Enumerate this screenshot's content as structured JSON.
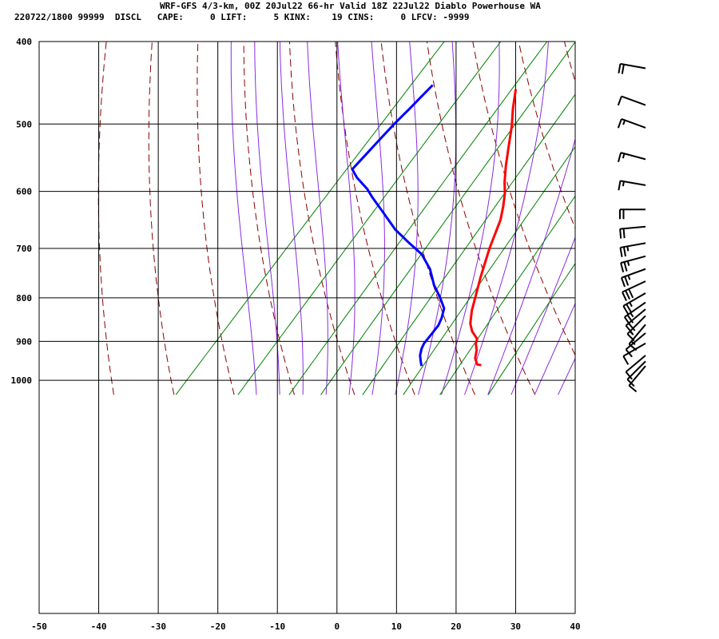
{
  "header": {
    "line1": "WRF-GFS 4/3-km, 00Z 20Jul22 66-hr Valid 18Z 22Jul22 Diablo Powerhouse WA",
    "line2": "220722/1800 99999  DISCL   CAPE:     0 LIFT:     5 KINX:    19 CINS:     0 LFCV: -9999"
  },
  "colors": {
    "temperature": "#ff0000",
    "dewpoint": "#0000ff",
    "dry_adiabat": "#8b0000",
    "moist_adiabat": "#8a2be2",
    "mixing_ratio": "#008000",
    "grid": "#000000"
  },
  "chart_data": {
    "type": "line",
    "subtype": "skew-t log-p sounding",
    "x_ticks": [
      -50,
      -40,
      -30,
      -20,
      -10,
      0,
      10,
      20,
      30,
      40
    ],
    "y_ticks": [
      400,
      500,
      600,
      700,
      800,
      900,
      1000
    ],
    "xlim": [
      -50,
      40
    ],
    "ylim": [
      1040,
      400
    ],
    "y_scale": "log",
    "grid": true,
    "series": [
      {
        "key": "temperature",
        "points": [
          [
            -17.6,
            455
          ],
          [
            -15,
            480
          ],
          [
            -12.5,
            503
          ],
          [
            -9.8,
            532
          ],
          [
            -7.3,
            560
          ],
          [
            -5,
            585
          ],
          [
            -3.2,
            603
          ],
          [
            -1.5,
            624
          ],
          [
            0.2,
            648
          ],
          [
            2.8,
            700
          ],
          [
            5.8,
            757
          ],
          [
            8.5,
            808
          ],
          [
            9.5,
            828
          ],
          [
            11.3,
            858
          ],
          [
            12.8,
            876
          ],
          [
            14.8,
            894
          ],
          [
            15.3,
            905
          ],
          [
            16.5,
            922
          ],
          [
            17.5,
            942
          ],
          [
            18.8,
            958
          ],
          [
            19.6,
            960
          ]
        ]
      },
      {
        "key": "dewpoint",
        "points": [
          [
            -32.2,
            450
          ],
          [
            -32.3,
            465
          ],
          [
            -32.4,
            480
          ],
          [
            -32.6,
            500
          ],
          [
            -32.6,
            520
          ],
          [
            -32.6,
            545
          ],
          [
            -32.6,
            565
          ],
          [
            -30.5,
            578
          ],
          [
            -27,
            596
          ],
          [
            -24.8,
            610
          ],
          [
            -21,
            633
          ],
          [
            -16,
            665
          ],
          [
            -11.5,
            690
          ],
          [
            -7.7,
            711
          ],
          [
            -4,
            740
          ],
          [
            -0.8,
            773
          ],
          [
            2,
            798
          ],
          [
            4.5,
            823
          ],
          [
            5.6,
            845
          ],
          [
            6.2,
            862
          ],
          [
            6.4,
            882
          ],
          [
            6.6,
            905
          ],
          [
            7,
            918
          ],
          [
            7.8,
            935
          ],
          [
            8.9,
            951
          ],
          [
            9.7,
            962
          ]
        ]
      }
    ],
    "wind_barbs": [
      {
        "p": 430,
        "dir": 280,
        "kt": 20
      },
      {
        "p": 475,
        "dir": 290,
        "kt": 10
      },
      {
        "p": 505,
        "dir": 290,
        "kt": 15
      },
      {
        "p": 550,
        "dir": 285,
        "kt": 15
      },
      {
        "p": 590,
        "dir": 280,
        "kt": 15
      },
      {
        "p": 630,
        "dir": 270,
        "kt": 20
      },
      {
        "p": 660,
        "dir": 265,
        "kt": 20
      },
      {
        "p": 690,
        "dir": 260,
        "kt": 25
      },
      {
        "p": 715,
        "dir": 255,
        "kt": 25
      },
      {
        "p": 740,
        "dir": 250,
        "kt": 25
      },
      {
        "p": 765,
        "dir": 245,
        "kt": 30
      },
      {
        "p": 790,
        "dir": 240,
        "kt": 25
      },
      {
        "p": 810,
        "dir": 235,
        "kt": 25
      },
      {
        "p": 825,
        "dir": 230,
        "kt": 20
      },
      {
        "p": 840,
        "dir": 225,
        "kt": 15
      },
      {
        "p": 860,
        "dir": 220,
        "kt": 15
      },
      {
        "p": 880,
        "dir": 230,
        "kt": 10
      },
      {
        "p": 905,
        "dir": 240,
        "kt": 10
      },
      {
        "p": 935,
        "dir": 230,
        "kt": 10
      },
      {
        "p": 950,
        "dir": 225,
        "kt": 10
      },
      {
        "p": 962,
        "dir": 220,
        "kt": 10
      }
    ]
  }
}
